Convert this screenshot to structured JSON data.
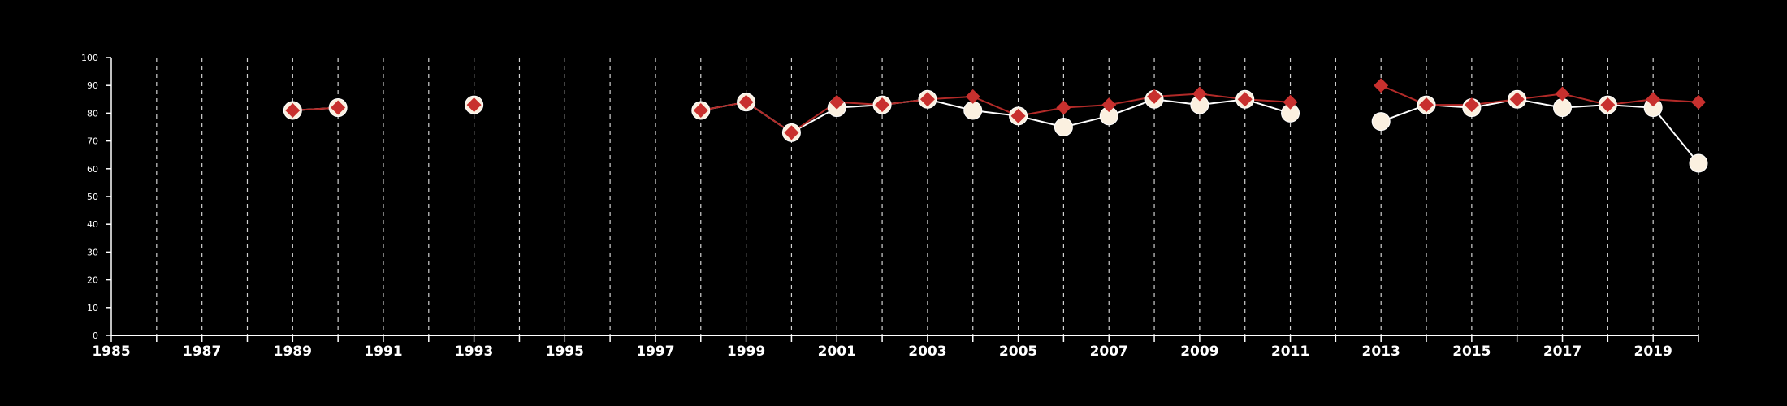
{
  "chart_data": {
    "type": "line",
    "title": "",
    "xlabel": "",
    "ylabel": "",
    "xlim": [
      1985,
      2020
    ],
    "ylim": [
      0,
      100
    ],
    "x_ticks": [
      1985,
      1987,
      1989,
      1991,
      1993,
      1995,
      1997,
      1999,
      2001,
      2003,
      2005,
      2007,
      2009,
      2011,
      2013,
      2015,
      2017,
      2019
    ],
    "y_ticks": [
      0,
      10,
      20,
      30,
      40,
      50,
      60,
      70,
      80,
      90,
      100
    ],
    "grid": "vertical dashed lines at every year",
    "legend": "none",
    "series": [
      {
        "marker": "circle",
        "color": "#fbf0e0",
        "points": [
          {
            "x": 1989,
            "y": 81
          },
          {
            "x": 1990,
            "y": 82
          },
          {
            "x": 1993,
            "y": 83
          },
          {
            "x": 1998,
            "y": 81
          },
          {
            "x": 1999,
            "y": 84
          },
          {
            "x": 2000,
            "y": 73
          },
          {
            "x": 2001,
            "y": 82
          },
          {
            "x": 2002,
            "y": 83
          },
          {
            "x": 2003,
            "y": 85
          },
          {
            "x": 2004,
            "y": 81
          },
          {
            "x": 2005,
            "y": 79
          },
          {
            "x": 2006,
            "y": 75
          },
          {
            "x": 2007,
            "y": 79
          },
          {
            "x": 2008,
            "y": 85
          },
          {
            "x": 2009,
            "y": 83
          },
          {
            "x": 2010,
            "y": 85
          },
          {
            "x": 2011,
            "y": 80
          },
          {
            "x": 2013,
            "y": 77
          },
          {
            "x": 2014,
            "y": 83
          },
          {
            "x": 2015,
            "y": 82
          },
          {
            "x": 2016,
            "y": 85
          },
          {
            "x": 2017,
            "y": 82
          },
          {
            "x": 2018,
            "y": 83
          },
          {
            "x": 2019,
            "y": 82
          },
          {
            "x": 2020,
            "y": 62
          }
        ]
      },
      {
        "marker": "diamond",
        "color": "#c8302e",
        "points": [
          {
            "x": 1989,
            "y": 81
          },
          {
            "x": 1990,
            "y": 82
          },
          {
            "x": 1993,
            "y": 83
          },
          {
            "x": 1998,
            "y": 81
          },
          {
            "x": 1999,
            "y": 84
          },
          {
            "x": 2000,
            "y": 73
          },
          {
            "x": 2001,
            "y": 84
          },
          {
            "x": 2002,
            "y": 83
          },
          {
            "x": 2003,
            "y": 85
          },
          {
            "x": 2004,
            "y": 86
          },
          {
            "x": 2005,
            "y": 79
          },
          {
            "x": 2006,
            "y": 82
          },
          {
            "x": 2007,
            "y": 83
          },
          {
            "x": 2008,
            "y": 86
          },
          {
            "x": 2009,
            "y": 87
          },
          {
            "x": 2010,
            "y": 85
          },
          {
            "x": 2011,
            "y": 84
          },
          {
            "x": 2013,
            "y": 90
          },
          {
            "x": 2014,
            "y": 83
          },
          {
            "x": 2015,
            "y": 83
          },
          {
            "x": 2016,
            "y": 85
          },
          {
            "x": 2017,
            "y": 87
          },
          {
            "x": 2018,
            "y": 83
          },
          {
            "x": 2019,
            "y": 85
          },
          {
            "x": 2020,
            "y": 84
          }
        ]
      }
    ]
  }
}
